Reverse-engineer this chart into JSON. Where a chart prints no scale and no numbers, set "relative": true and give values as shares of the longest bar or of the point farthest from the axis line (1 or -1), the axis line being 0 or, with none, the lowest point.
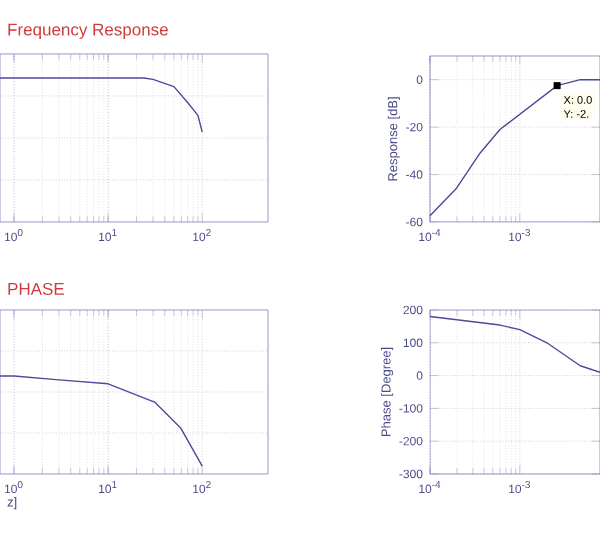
{
  "chart_data": [
    {
      "type": "line",
      "title": "Frequency Response",
      "relative": true,
      "x": [
        0.71,
        1,
        10,
        24,
        30,
        50,
        70,
        90,
        100
      ],
      "values": [
        1,
        1,
        1,
        1,
        0.99,
        0.94,
        0.83,
        0.74,
        0.625
      ],
      "color": "#4b4b9b",
      "log": "x",
      "xlim": [
        0.71,
        500
      ],
      "xticks": [
        {
          "value": 1,
          "label": "10$^{0}$"
        },
        {
          "value": 10,
          "label": "10$^{1}$"
        },
        {
          "value": 100,
          "label": "10$^{2}$"
        }
      ],
      "grid": true,
      "tick_labels": "x"
    },
    {
      "type": "line",
      "ylabel": "Response [dB]",
      "x": [
        0.0001,
        0.000195,
        0.00036,
        0.0006,
        0.0026,
        0.0047,
        0.0078
      ],
      "values": [
        -57.4,
        -46,
        -31,
        -21,
        -2.5,
        0,
        0
      ],
      "color": "#4b4b9b",
      "log": "x",
      "xlim": [
        0.0001,
        0.0078
      ],
      "ylim": [
        -60,
        10
      ],
      "yticks": [
        -60,
        -40,
        -20,
        0
      ],
      "xticks": [
        {
          "value": 0.0001,
          "label": "10$^{-4}$"
        },
        {
          "value": 0.001,
          "label": "10$^{-3}$"
        }
      ],
      "grid": true,
      "annotations": [
        {
          "text": "X: 0.0",
          "x": 0.0026,
          "y": -2.5
        },
        {
          "text": "Y: -2.",
          "x": 0.0026,
          "y": -2.5
        }
      ]
    },
    {
      "type": "line",
      "title": "PHASE",
      "xlabel": "z]",
      "relative": true,
      "x": [
        0.71,
        1,
        3,
        10,
        31.6,
        59,
        100
      ],
      "values": [
        1,
        1,
        0.96,
        0.92,
        0.73,
        0.47,
        0.08
      ],
      "color": "#4b4b9b",
      "log": "x",
      "xlim": [
        0.71,
        500
      ],
      "xticks": [
        {
          "value": 1,
          "label": "10$^{0}$"
        },
        {
          "value": 10,
          "label": "10$^{1}$"
        },
        {
          "value": 100,
          "label": "10$^{2}$"
        }
      ],
      "grid": true,
      "tick_labels": "x"
    },
    {
      "type": "line",
      "ylabel": "Phase [Degree]",
      "x": [
        0.0001,
        0.0006,
        0.001,
        0.002,
        0.0047,
        0.0078
      ],
      "values": [
        180,
        154,
        140,
        100,
        30,
        10
      ],
      "color": "#4b4b9b",
      "log": "x",
      "xlim": [
        0.0001,
        0.0078
      ],
      "ylim": [
        -300,
        200
      ],
      "yticks": [
        -300,
        -200,
        -100,
        0,
        100,
        200
      ],
      "xticks": [
        {
          "value": 0.0001,
          "label": "10$^{-4}$"
        },
        {
          "value": 0.001,
          "label": "10$^{-3}$"
        }
      ],
      "grid": true
    }
  ]
}
